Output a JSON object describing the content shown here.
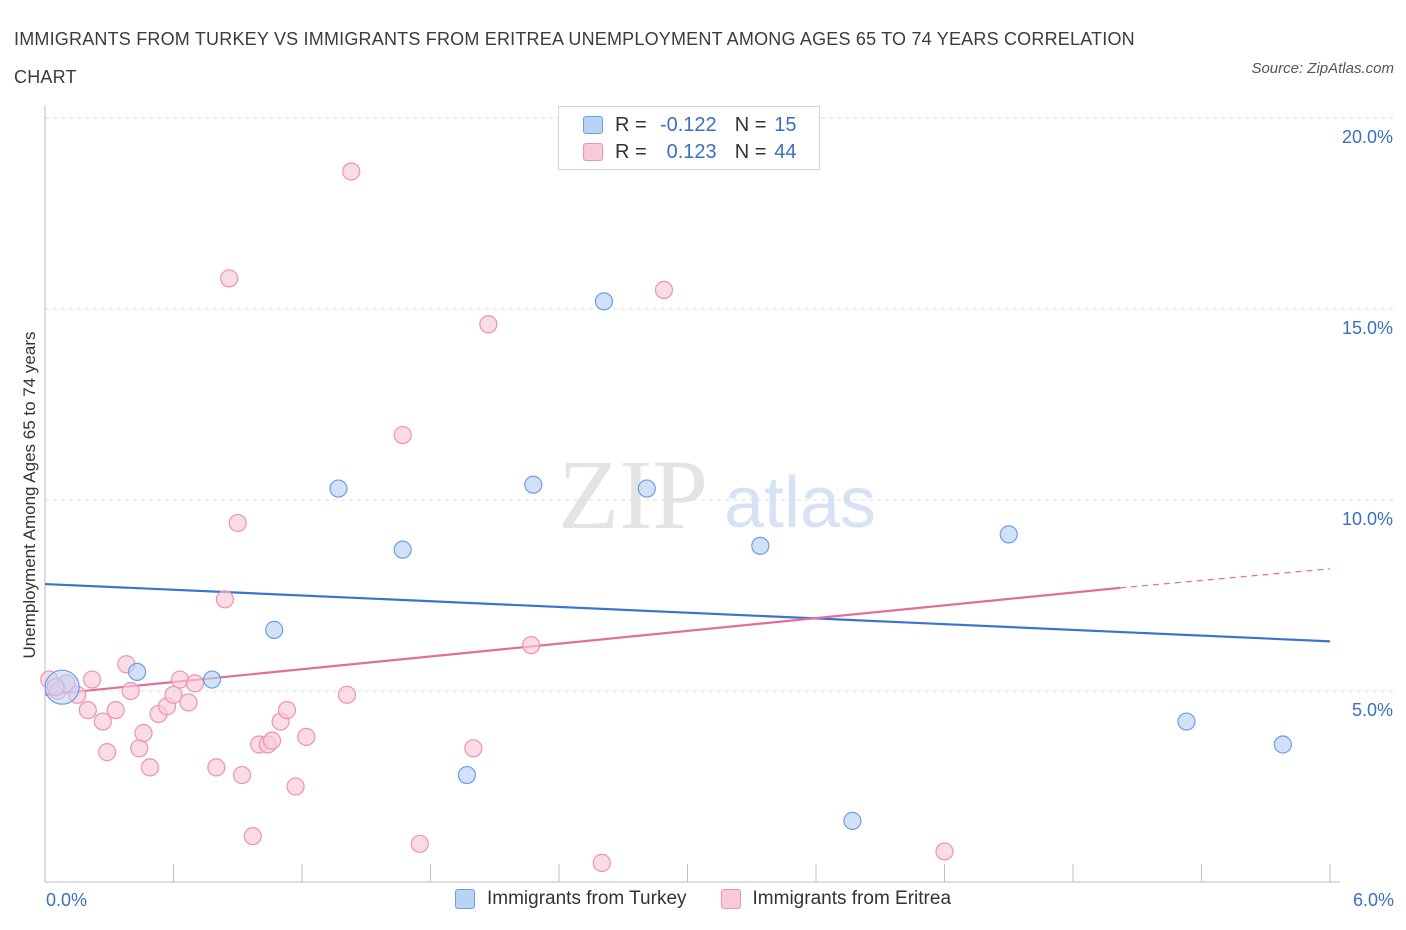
{
  "title": "IMMIGRANTS FROM TURKEY VS IMMIGRANTS FROM ERITREA UNEMPLOYMENT AMONG AGES 65 TO 74 YEARS CORRELATION CHART",
  "source": "Source: ZipAtlas.com",
  "watermark": {
    "zip": "ZIP",
    "atlas": "atlas"
  },
  "legend": {
    "r_label": "R =",
    "n_label": "N =",
    "rows": [
      {
        "r": "-0.122",
        "n": "15",
        "fill": "#b9d3f5",
        "stroke": "#6b9ee6"
      },
      {
        "r": "0.123",
        "n": "44",
        "fill": "#f9c9d8",
        "stroke": "#ee92b1"
      }
    ]
  },
  "chart_data": {
    "type": "scatter",
    "title": "IMMIGRANTS FROM TURKEY VS IMMIGRANTS FROM ERITREA UNEMPLOYMENT AMONG AGES 65 TO 74 YEARS CORRELATION CHART",
    "xlabel": "",
    "ylabel": "Unemployment Among Ages 65 to 74 years",
    "xlim": [
      0,
      6
    ],
    "ylim": [
      0,
      20
    ],
    "x_tick_labels": [
      "0.0%",
      "6.0%"
    ],
    "y_ticks": [
      5,
      10,
      15,
      20
    ],
    "y_tick_labels": [
      "5.0%",
      "10.0%",
      "15.0%",
      "20.0%"
    ],
    "grid": "horizontal dashed",
    "legend_position": "bottom-center",
    "series": [
      {
        "name": "Immigrants from Turkey",
        "color": "#6b9ee6",
        "fill": "#b9d3f5",
        "trend_color": "#3a74d0",
        "trend": [
          [
            0,
            7.8
          ],
          [
            6,
            6.3
          ]
        ],
        "points": [
          [
            0.08,
            5.1,
            "big"
          ],
          [
            0.43,
            5.5
          ],
          [
            0.78,
            5.3
          ],
          [
            1.07,
            6.6
          ],
          [
            1.37,
            10.3
          ],
          [
            1.67,
            8.7
          ],
          [
            1.97,
            2.8
          ],
          [
            2.28,
            10.4
          ],
          [
            2.61,
            15.2
          ],
          [
            2.81,
            10.3
          ],
          [
            3.34,
            8.8
          ],
          [
            3.77,
            1.6
          ],
          [
            4.5,
            9.1
          ],
          [
            5.33,
            4.2
          ],
          [
            5.78,
            3.6
          ]
        ]
      },
      {
        "name": "Immigrants from Eritrea",
        "color": "#ee92b1",
        "fill": "#f9c9d8",
        "trend_color": "#e0709b",
        "trend": [
          [
            0,
            4.9
          ],
          [
            5.02,
            7.7
          ]
        ],
        "trend_ext": [
          [
            5.02,
            7.7
          ],
          [
            6,
            8.2
          ]
        ],
        "points": [
          [
            0.02,
            5.3
          ],
          [
            0.06,
            5.0
          ],
          [
            0.1,
            5.2
          ],
          [
            0.15,
            4.9
          ],
          [
            0.2,
            4.5
          ],
          [
            0.22,
            5.3
          ],
          [
            0.27,
            4.2
          ],
          [
            0.29,
            3.4
          ],
          [
            0.33,
            4.5
          ],
          [
            0.38,
            5.7
          ],
          [
            0.4,
            5.0
          ],
          [
            0.44,
            3.5
          ],
          [
            0.46,
            3.9
          ],
          [
            0.49,
            3.0
          ],
          [
            0.53,
            4.4
          ],
          [
            0.57,
            4.6
          ],
          [
            0.6,
            4.9
          ],
          [
            0.63,
            5.3
          ],
          [
            0.67,
            4.7
          ],
          [
            0.7,
            5.2
          ],
          [
            0.8,
            3.0
          ],
          [
            0.84,
            7.4
          ],
          [
            0.86,
            15.8
          ],
          [
            0.9,
            9.4
          ],
          [
            0.92,
            2.8
          ],
          [
            0.97,
            1.2
          ],
          [
            1.0,
            3.6
          ],
          [
            1.04,
            3.6
          ],
          [
            1.06,
            3.7
          ],
          [
            1.1,
            4.2
          ],
          [
            1.13,
            4.5
          ],
          [
            1.17,
            2.5
          ],
          [
            1.22,
            3.8
          ],
          [
            1.41,
            4.9
          ],
          [
            1.43,
            18.6
          ],
          [
            1.67,
            11.7
          ],
          [
            1.75,
            1.0
          ],
          [
            2.0,
            3.5
          ],
          [
            2.07,
            14.6
          ],
          [
            2.27,
            6.2
          ],
          [
            2.6,
            0.5
          ],
          [
            2.89,
            15.5
          ],
          [
            4.2,
            0.8
          ],
          [
            0.05,
            5.1
          ]
        ]
      }
    ]
  }
}
